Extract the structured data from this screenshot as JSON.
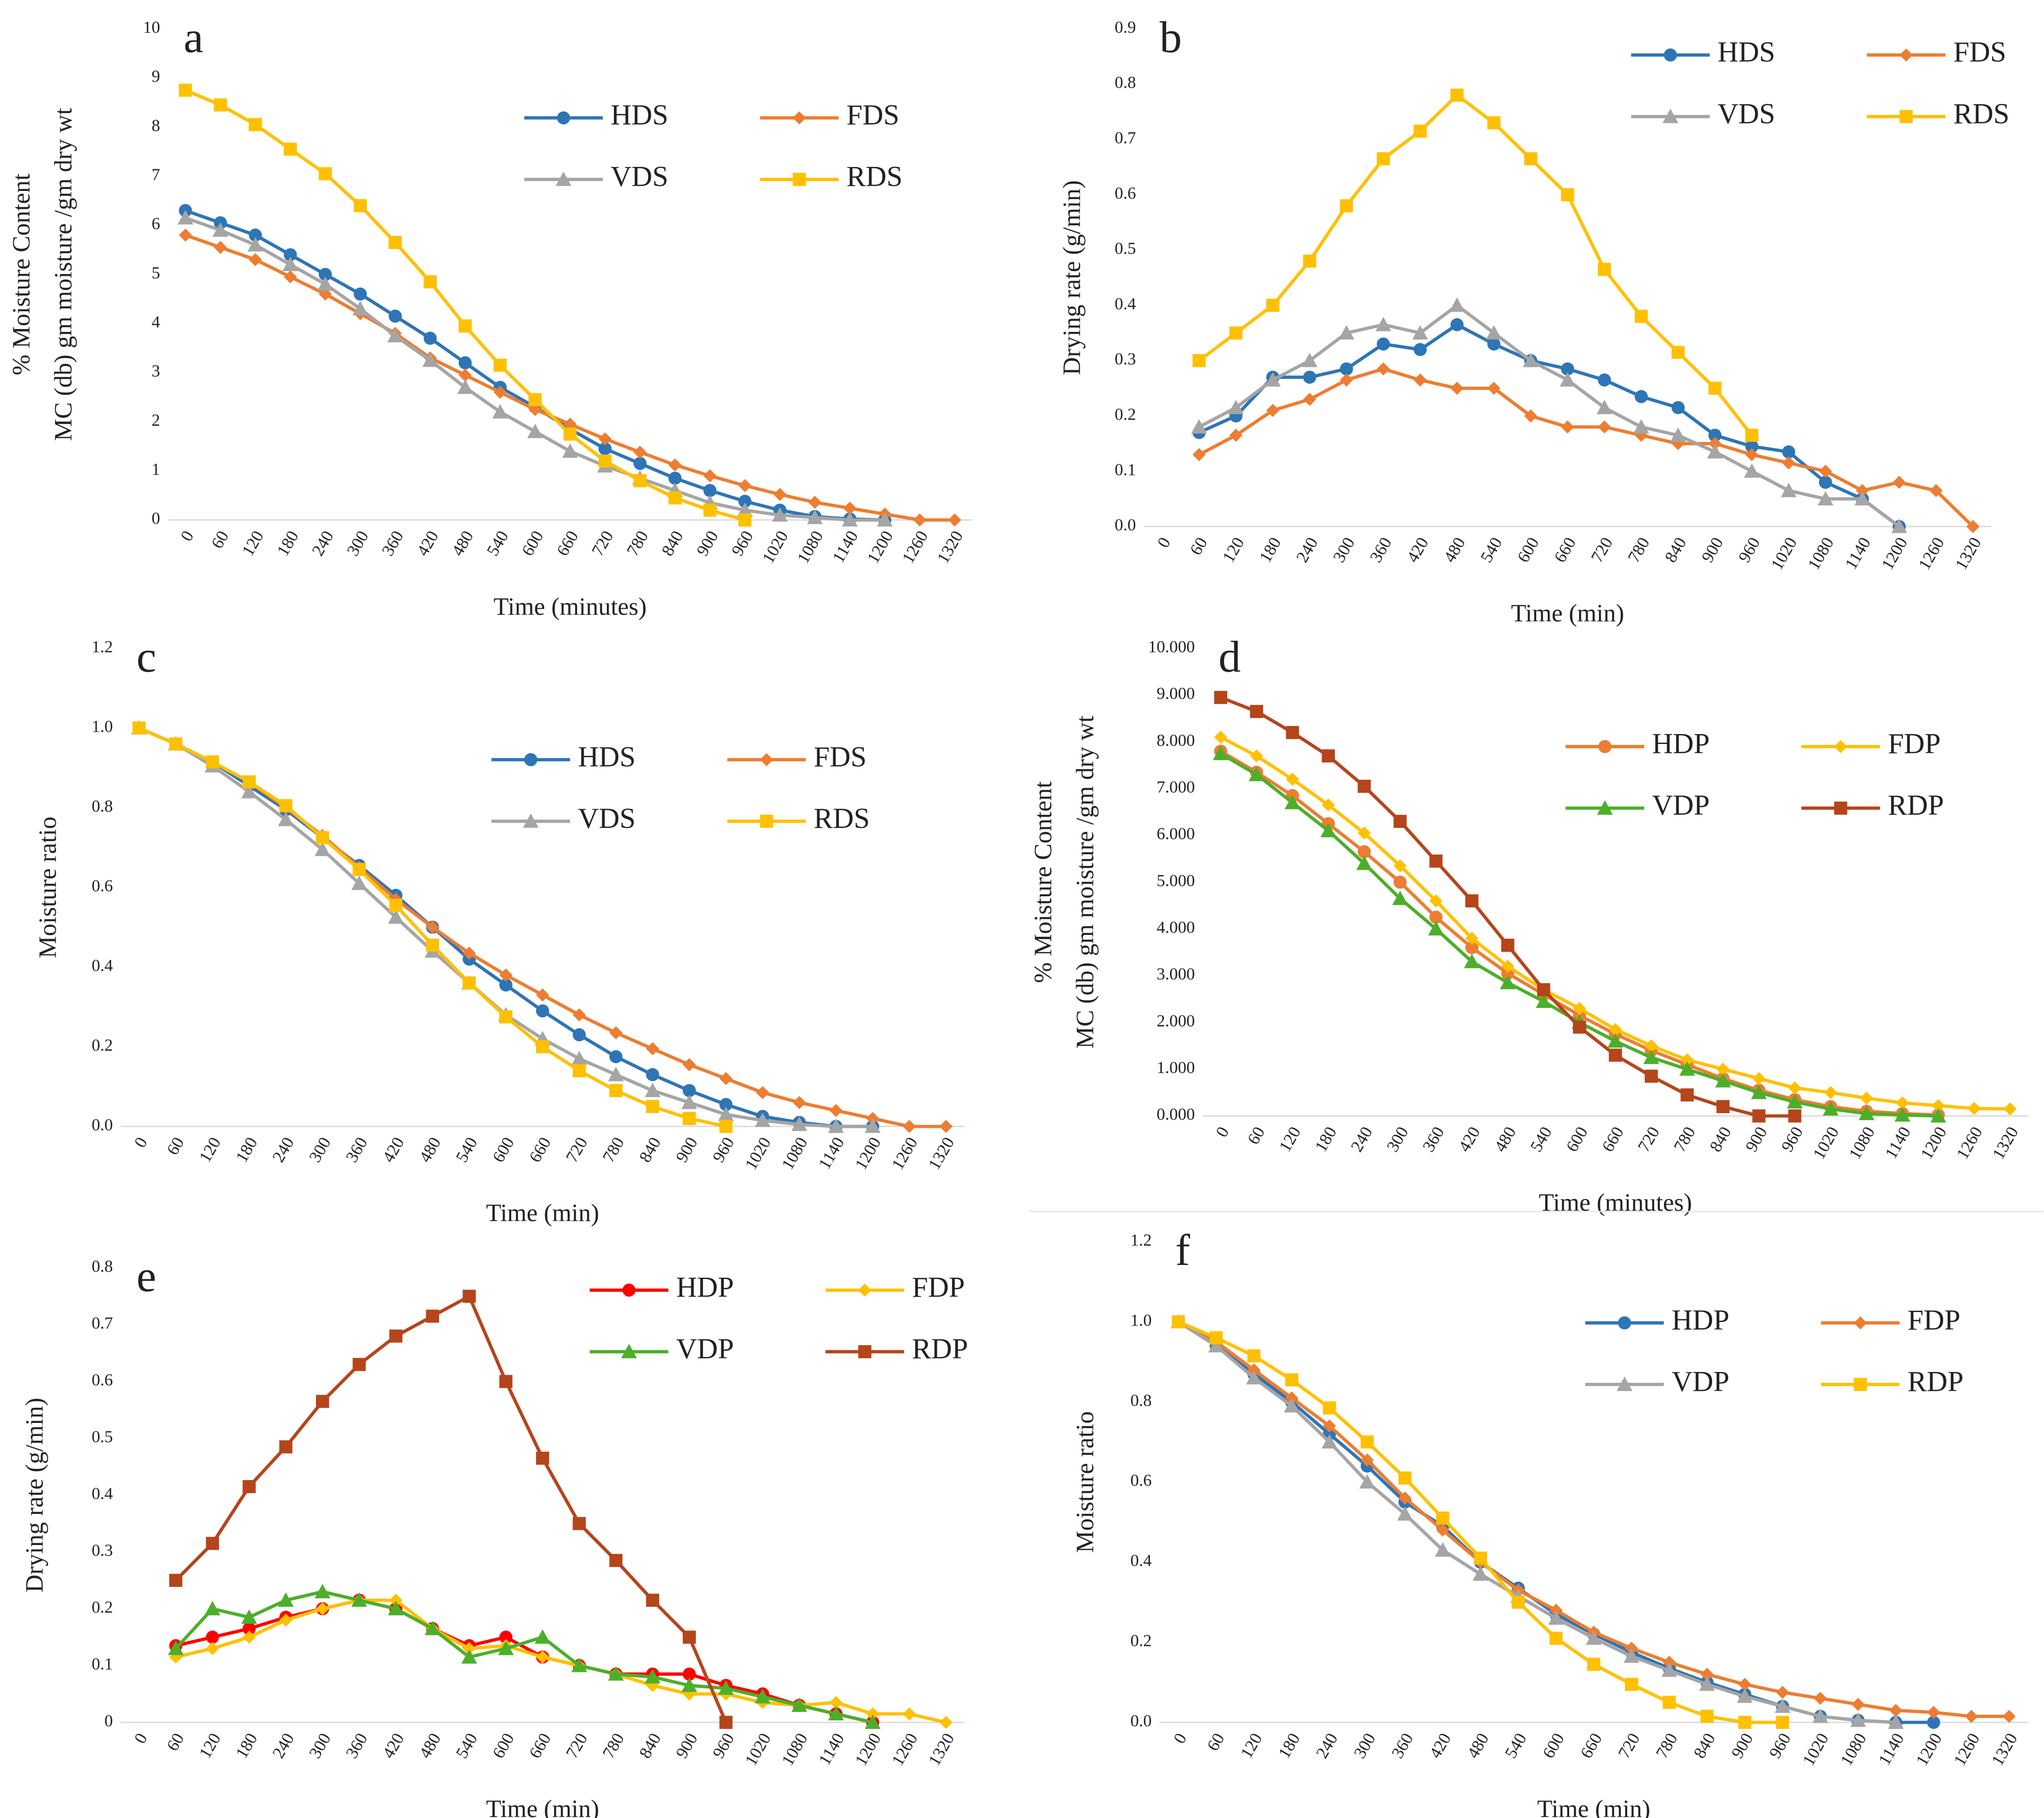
{
  "chart_data": [
    {
      "type": "line",
      "label": "a",
      "xlabel": "Time (minutes)",
      "ylabel": [
        "% Moisture Content",
        "MC (db) gm moisture /gm dry wt"
      ],
      "categories": [
        0,
        60,
        120,
        180,
        240,
        300,
        360,
        420,
        480,
        540,
        600,
        660,
        720,
        780,
        840,
        900,
        960,
        1020,
        1080,
        1140,
        1200,
        1260,
        1320
      ],
      "ylim": [
        0,
        10
      ],
      "yticks": [
        0,
        1,
        2,
        3,
        4,
        5,
        6,
        7,
        8,
        9,
        10
      ],
      "series": [
        {
          "name": "HDS",
          "color": "#2e75b6",
          "marker": "circle",
          "values": [
            6.3,
            6.05,
            5.8,
            5.4,
            5.0,
            4.6,
            4.15,
            3.7,
            3.2,
            2.7,
            2.3,
            1.85,
            1.45,
            1.15,
            0.85,
            0.6,
            0.38,
            0.2,
            0.07,
            0.02,
            0.0,
            null,
            null
          ]
        },
        {
          "name": "FDS",
          "color": "#ed7d31",
          "marker": "diamond",
          "values": [
            5.8,
            5.55,
            5.3,
            4.95,
            4.6,
            4.2,
            3.8,
            3.3,
            2.95,
            2.6,
            2.25,
            1.95,
            1.65,
            1.38,
            1.12,
            0.9,
            0.7,
            0.52,
            0.36,
            0.24,
            0.12,
            0.0,
            0.0
          ]
        },
        {
          "name": "VDS",
          "color": "#a5a5a5",
          "marker": "triangle",
          "values": [
            6.15,
            5.9,
            5.6,
            5.2,
            4.8,
            4.3,
            3.75,
            3.25,
            2.7,
            2.2,
            1.8,
            1.4,
            1.1,
            0.85,
            0.6,
            0.35,
            0.2,
            0.1,
            0.05,
            0.0,
            0.0,
            null,
            null
          ]
        },
        {
          "name": "RDS",
          "color": "#ffc000",
          "marker": "square",
          "values": [
            8.75,
            8.45,
            8.05,
            7.55,
            7.05,
            6.4,
            5.65,
            4.85,
            3.95,
            3.15,
            2.45,
            1.75,
            1.2,
            0.8,
            0.45,
            0.2,
            0.0,
            null,
            null,
            null,
            null,
            null,
            null
          ]
        }
      ]
    },
    {
      "type": "line",
      "label": "b",
      "xlabel": "Time (min)",
      "ylabel": [
        "Drying rate (g/min)"
      ],
      "categories": [
        0,
        60,
        120,
        180,
        240,
        300,
        360,
        420,
        480,
        540,
        600,
        660,
        720,
        780,
        840,
        900,
        960,
        1020,
        1080,
        1140,
        1200,
        1260,
        1320
      ],
      "ylim": [
        0,
        0.9
      ],
      "yticks": [
        {
          "value": 0,
          "label": "0.0"
        },
        {
          "value": 0.1,
          "label": "0.1"
        },
        {
          "value": 0.2,
          "label": "0.2"
        },
        {
          "value": 0.3,
          "label": "0.3"
        },
        {
          "value": 0.4,
          "label": "0.4"
        },
        {
          "value": 0.5,
          "label": "0.5"
        },
        {
          "value": 0.6,
          "label": "0.6"
        },
        {
          "value": 0.7,
          "label": "0.7"
        },
        {
          "value": 0.8,
          "label": "0.8"
        },
        {
          "value": 0.9,
          "label": "0.9"
        }
      ],
      "series": [
        {
          "name": "HDS",
          "color": "#2e75b6",
          "marker": "circle",
          "values": [
            null,
            0.17,
            0.2,
            0.27,
            0.27,
            0.285,
            0.33,
            0.32,
            0.365,
            0.33,
            0.3,
            0.285,
            0.265,
            0.235,
            0.215,
            0.165,
            0.145,
            0.135,
            0.08,
            0.05,
            0.0,
            null,
            null
          ]
        },
        {
          "name": "FDS",
          "color": "#ed7d31",
          "marker": "diamond",
          "values": [
            null,
            0.13,
            0.165,
            0.21,
            0.23,
            0.265,
            0.285,
            0.265,
            0.25,
            0.25,
            0.2,
            0.18,
            0.18,
            0.165,
            0.15,
            0.15,
            0.13,
            0.115,
            0.1,
            0.065,
            0.08,
            0.065,
            0.0
          ]
        },
        {
          "name": "VDS",
          "color": "#a5a5a5",
          "marker": "triangle",
          "values": [
            null,
            0.18,
            0.215,
            0.265,
            0.3,
            0.35,
            0.365,
            0.35,
            0.4,
            0.35,
            0.3,
            0.265,
            0.215,
            0.18,
            0.165,
            0.135,
            0.1,
            0.065,
            0.05,
            0.05,
            0.0,
            null,
            null
          ]
        },
        {
          "name": "RDS",
          "color": "#ffc000",
          "marker": "square",
          "values": [
            null,
            0.3,
            0.35,
            0.4,
            0.48,
            0.58,
            0.665,
            0.715,
            0.78,
            0.73,
            0.665,
            0.6,
            0.465,
            0.38,
            0.315,
            0.25,
            0.165,
            null,
            null,
            null,
            null,
            null,
            null
          ]
        }
      ]
    },
    {
      "type": "line",
      "label": "c",
      "xlabel": "Time (min)",
      "ylabel": [
        "Moisture ratio"
      ],
      "categories": [
        0,
        60,
        120,
        180,
        240,
        300,
        360,
        420,
        480,
        540,
        600,
        660,
        720,
        780,
        840,
        900,
        960,
        1020,
        1080,
        1140,
        1200,
        1260,
        1320
      ],
      "ylim": [
        0,
        1.2
      ],
      "yticks": [
        {
          "value": 0,
          "label": "0.0"
        },
        {
          "value": 0.2,
          "label": "0.2"
        },
        {
          "value": 0.4,
          "label": "0.4"
        },
        {
          "value": 0.6,
          "label": "0.6"
        },
        {
          "value": 0.8,
          "label": "0.8"
        },
        {
          "value": 1,
          "label": "1.0"
        },
        {
          "value": 1.2,
          "label": "1.2"
        }
      ],
      "series": [
        {
          "name": "HDS",
          "color": "#2e75b6",
          "marker": "circle",
          "values": [
            1.0,
            0.96,
            0.915,
            0.855,
            0.795,
            0.725,
            0.655,
            0.58,
            0.5,
            0.42,
            0.355,
            0.29,
            0.23,
            0.175,
            0.13,
            0.09,
            0.055,
            0.025,
            0.01,
            0.0,
            0.0,
            null,
            null
          ]
        },
        {
          "name": "FDS",
          "color": "#ed7d31",
          "marker": "diamond",
          "values": [
            1.0,
            0.96,
            0.915,
            0.865,
            0.8,
            0.73,
            0.65,
            0.57,
            0.5,
            0.435,
            0.38,
            0.33,
            0.28,
            0.235,
            0.195,
            0.155,
            0.12,
            0.085,
            0.06,
            0.04,
            0.02,
            0.0,
            0.0
          ]
        },
        {
          "name": "VDS",
          "color": "#a5a5a5",
          "marker": "triangle",
          "values": [
            1.0,
            0.96,
            0.905,
            0.84,
            0.77,
            0.695,
            0.61,
            0.525,
            0.44,
            0.36,
            0.28,
            0.22,
            0.17,
            0.13,
            0.09,
            0.06,
            0.03,
            0.015,
            0.005,
            0.0,
            0.0,
            null,
            null
          ]
        },
        {
          "name": "RDS",
          "color": "#ffc000",
          "marker": "square",
          "values": [
            1.0,
            0.96,
            0.915,
            0.865,
            0.805,
            0.725,
            0.645,
            0.555,
            0.455,
            0.36,
            0.275,
            0.2,
            0.14,
            0.09,
            0.05,
            0.02,
            0.0,
            null,
            null,
            null,
            null,
            null,
            null
          ]
        }
      ]
    },
    {
      "type": "line",
      "label": "d",
      "xlabel": "Time (minutes)",
      "ylabel": [
        "% Moisture Content",
        "MC (db) gm moisture /gm dry wt"
      ],
      "categories": [
        0,
        60,
        120,
        180,
        240,
        300,
        360,
        420,
        480,
        540,
        600,
        660,
        720,
        780,
        840,
        900,
        960,
        1020,
        1080,
        1140,
        1200,
        1260,
        1320
      ],
      "ylim": [
        0,
        10
      ],
      "yticks": [
        {
          "value": 0,
          "label": "0.000"
        },
        {
          "value": 1,
          "label": "1.000"
        },
        {
          "value": 2,
          "label": "2.000"
        },
        {
          "value": 3,
          "label": "3.000"
        },
        {
          "value": 4,
          "label": "4.000"
        },
        {
          "value": 5,
          "label": "5.000"
        },
        {
          "value": 6,
          "label": "6.000"
        },
        {
          "value": 7,
          "label": "7.000"
        },
        {
          "value": 8,
          "label": "8.000"
        },
        {
          "value": 9,
          "label": "9.000"
        },
        {
          "value": 10,
          "label": "10.000"
        }
      ],
      "series": [
        {
          "name": "HDP",
          "color": "#ed7d31",
          "marker": "circle",
          "values": [
            7.8,
            7.35,
            6.85,
            6.25,
            5.65,
            5.0,
            4.25,
            3.6,
            3.05,
            2.6,
            2.15,
            1.75,
            1.4,
            1.1,
            0.8,
            0.55,
            0.35,
            0.2,
            0.1,
            0.05,
            0.02,
            null,
            null
          ]
        },
        {
          "name": "FDP",
          "color": "#ffc000",
          "marker": "diamond",
          "values": [
            8.1,
            7.7,
            7.2,
            6.65,
            6.05,
            5.35,
            4.6,
            3.8,
            3.2,
            2.7,
            2.3,
            1.85,
            1.5,
            1.2,
            1.0,
            0.8,
            0.6,
            0.5,
            0.38,
            0.28,
            0.22,
            0.16,
            0.15
          ]
        },
        {
          "name": "VDP",
          "color": "#4caf2a",
          "marker": "triangle",
          "values": [
            7.75,
            7.3,
            6.7,
            6.1,
            5.4,
            4.65,
            4.0,
            3.3,
            2.85,
            2.45,
            2.0,
            1.6,
            1.25,
            1.0,
            0.75,
            0.5,
            0.3,
            0.15,
            0.05,
            0.02,
            0.0,
            null,
            null
          ]
        },
        {
          "name": "RDP",
          "color": "#b5451b",
          "marker": "square",
          "values": [
            8.95,
            8.65,
            8.2,
            7.7,
            7.05,
            6.3,
            5.45,
            4.6,
            3.65,
            2.7,
            1.9,
            1.3,
            0.85,
            0.45,
            0.2,
            0.0,
            0.0,
            null,
            null,
            null,
            null,
            null,
            null
          ]
        }
      ]
    },
    {
      "type": "line",
      "label": "e",
      "xlabel": "Time (min)",
      "ylabel": [
        "Drying rate (g/min)"
      ],
      "categories": [
        0,
        60,
        120,
        180,
        240,
        300,
        360,
        420,
        480,
        540,
        600,
        660,
        720,
        780,
        840,
        900,
        960,
        1020,
        1080,
        1140,
        1200,
        1260,
        1320
      ],
      "ylim": [
        0,
        0.8
      ],
      "yticks": [
        0,
        0.1,
        0.2,
        0.3,
        0.4,
        0.5,
        0.6,
        0.7,
        0.8
      ],
      "series": [
        {
          "name": "HDP",
          "color": "#ff0000",
          "marker": "circle",
          "values": [
            null,
            0.135,
            0.15,
            0.165,
            0.185,
            0.2,
            0.215,
            0.2,
            0.165,
            0.135,
            0.15,
            0.115,
            0.1,
            0.085,
            0.085,
            0.085,
            0.065,
            0.05,
            0.03,
            0.015,
            0.0,
            null,
            null
          ]
        },
        {
          "name": "FDP",
          "color": "#ffc000",
          "marker": "diamond",
          "values": [
            null,
            0.115,
            0.13,
            0.15,
            0.18,
            0.2,
            0.215,
            0.215,
            0.165,
            0.13,
            0.135,
            0.115,
            0.1,
            0.085,
            0.065,
            0.05,
            0.05,
            0.035,
            0.03,
            0.035,
            0.015,
            0.015,
            0.0
          ]
        },
        {
          "name": "VDP",
          "color": "#4caf2a",
          "marker": "triangle",
          "values": [
            null,
            0.13,
            0.2,
            0.185,
            0.215,
            0.23,
            0.215,
            0.2,
            0.165,
            0.115,
            0.13,
            0.15,
            0.1,
            0.085,
            0.08,
            0.065,
            0.06,
            0.045,
            0.03,
            0.015,
            0.0,
            null,
            null
          ]
        },
        {
          "name": "RDP",
          "color": "#b5451b",
          "marker": "square",
          "values": [
            null,
            0.25,
            0.315,
            0.415,
            0.485,
            0.565,
            0.63,
            0.68,
            0.715,
            0.75,
            0.6,
            0.465,
            0.35,
            0.285,
            0.215,
            0.15,
            0.0,
            null,
            null,
            null,
            null,
            null,
            null
          ]
        }
      ]
    },
    {
      "type": "line",
      "label": "f",
      "xlabel": "Time (min)",
      "ylabel": [
        "Moisture ratio"
      ],
      "categories": [
        0,
        60,
        120,
        180,
        240,
        300,
        360,
        420,
        480,
        540,
        600,
        660,
        720,
        780,
        840,
        900,
        960,
        1020,
        1080,
        1140,
        1200,
        1260,
        1320
      ],
      "ylim": [
        0,
        1.2
      ],
      "yticks": [
        {
          "value": 0,
          "label": "0.0"
        },
        {
          "value": 0.2,
          "label": "0.2"
        },
        {
          "value": 0.4,
          "label": "0.4"
        },
        {
          "value": 0.6,
          "label": "0.6"
        },
        {
          "value": 0.8,
          "label": "0.8"
        },
        {
          "value": 1,
          "label": "1.0"
        },
        {
          "value": 1.2,
          "label": "1.2"
        }
      ],
      "series": [
        {
          "name": "HDP",
          "color": "#2e75b6",
          "marker": "circle",
          "values": [
            1.0,
            0.94,
            0.87,
            0.8,
            0.72,
            0.64,
            0.55,
            0.49,
            0.4,
            0.335,
            0.27,
            0.22,
            0.175,
            0.135,
            0.1,
            0.07,
            0.04,
            0.015,
            0.005,
            0.0,
            0.0,
            null,
            null
          ]
        },
        {
          "name": "FDP",
          "color": "#ed7d31",
          "marker": "diamond",
          "values": [
            1.0,
            0.95,
            0.88,
            0.81,
            0.74,
            0.655,
            0.56,
            0.48,
            0.4,
            0.33,
            0.28,
            0.225,
            0.185,
            0.15,
            0.12,
            0.095,
            0.075,
            0.06,
            0.045,
            0.03,
            0.025,
            0.015,
            0.015
          ]
        },
        {
          "name": "VDP",
          "color": "#a5a5a5",
          "marker": "triangle",
          "values": [
            1.0,
            0.94,
            0.86,
            0.79,
            0.7,
            0.6,
            0.52,
            0.43,
            0.37,
            0.315,
            0.26,
            0.21,
            0.165,
            0.13,
            0.095,
            0.065,
            0.04,
            0.015,
            0.005,
            0.0,
            null,
            null,
            null
          ]
        },
        {
          "name": "RDP",
          "color": "#ffc000",
          "marker": "square",
          "values": [
            1.0,
            0.96,
            0.915,
            0.855,
            0.785,
            0.7,
            0.61,
            0.51,
            0.41,
            0.3,
            0.21,
            0.145,
            0.095,
            0.05,
            0.015,
            0.0,
            0.0,
            null,
            null,
            null,
            null,
            null,
            null
          ]
        }
      ]
    }
  ]
}
